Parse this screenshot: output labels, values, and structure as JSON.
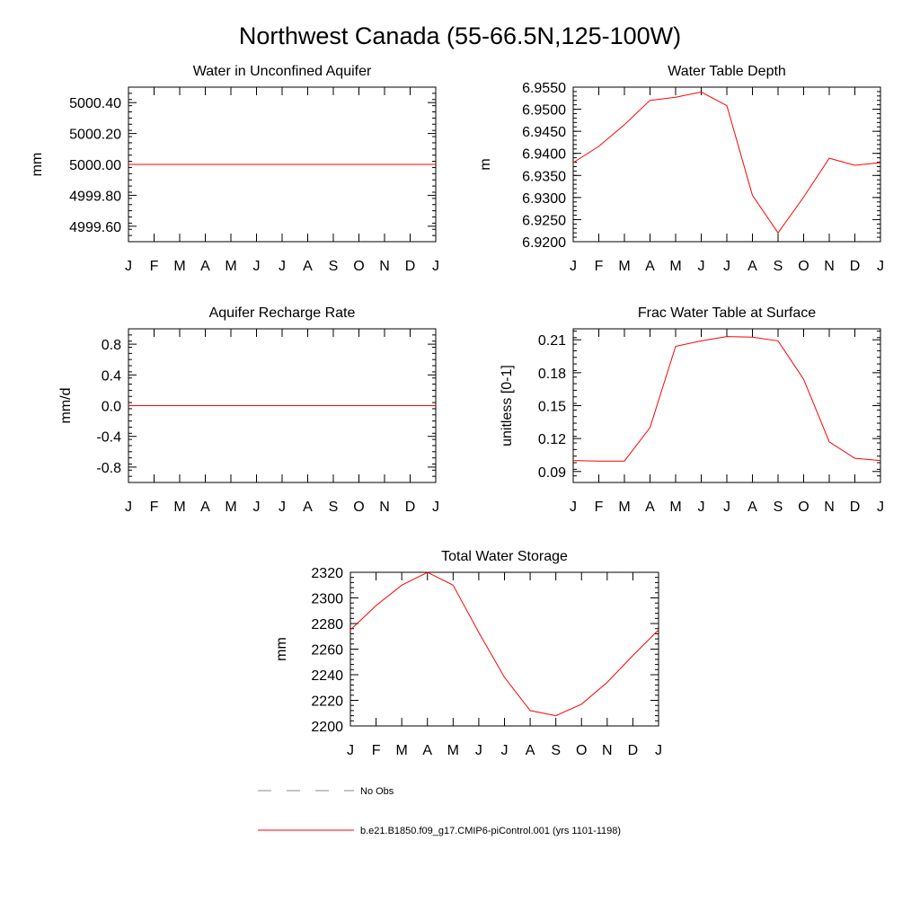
{
  "title": "Northwest Canada (55-66.5N,125-100W)",
  "chart_data": [
    {
      "type": "line",
      "title": "Water in Unconfined Aquifer",
      "ylabel": "mm",
      "x": [
        "J",
        "F",
        "M",
        "A",
        "M",
        "J",
        "J",
        "A",
        "S",
        "O",
        "N",
        "D",
        "J"
      ],
      "ylim": [
        4999.5,
        5000.5
      ],
      "yticks": [
        4999.6,
        4999.8,
        5000.0,
        5000.2,
        5000.4
      ],
      "ytick_labels": [
        "4999.60",
        "4999.80",
        "5000.00",
        "5000.20",
        "5000.40"
      ],
      "series": [
        {
          "color": "#ff0000",
          "values": [
            5000.0,
            5000.0,
            5000.0,
            5000.0,
            5000.0,
            5000.0,
            5000.0,
            5000.0,
            5000.0,
            5000.0,
            5000.0,
            5000.0,
            5000.0
          ]
        }
      ]
    },
    {
      "type": "line",
      "title": "Water Table Depth",
      "ylabel": "m",
      "x": [
        "J",
        "F",
        "M",
        "A",
        "M",
        "J",
        "J",
        "A",
        "S",
        "O",
        "N",
        "D",
        "J"
      ],
      "ylim": [
        6.92,
        6.955
      ],
      "yticks": [
        6.92,
        6.925,
        6.93,
        6.935,
        6.94,
        6.945,
        6.95,
        6.955
      ],
      "ytick_labels": [
        "6.9200",
        "6.9250",
        "6.9300",
        "6.9350",
        "6.9400",
        "6.9450",
        "6.9500",
        "6.9550"
      ],
      "series": [
        {
          "color": "#ff0000",
          "values": [
            6.9379,
            6.9416,
            6.9465,
            6.952,
            6.9527,
            6.9539,
            6.9508,
            6.9305,
            6.922,
            6.9301,
            6.9389,
            6.9373,
            6.9379
          ]
        }
      ]
    },
    {
      "type": "line",
      "title": "Aquifer Recharge Rate",
      "ylabel": "mm/d",
      "x": [
        "J",
        "F",
        "M",
        "A",
        "M",
        "J",
        "J",
        "A",
        "S",
        "O",
        "N",
        "D",
        "J"
      ],
      "ylim": [
        -1.0,
        1.0
      ],
      "yticks": [
        -0.8,
        -0.4,
        0.0,
        0.4,
        0.8
      ],
      "ytick_labels": [
        "-0.8",
        "-0.4",
        "0.0",
        "0.4",
        "0.8"
      ],
      "series": [
        {
          "color": "#ff0000",
          "values": [
            0,
            0,
            0,
            0,
            0,
            0,
            0,
            0,
            0,
            0,
            0,
            0,
            0
          ]
        }
      ]
    },
    {
      "type": "line",
      "title": "Frac Water Table at Surface",
      "ylabel": "unitless [0-1]",
      "x": [
        "J",
        "F",
        "M",
        "A",
        "M",
        "J",
        "J",
        "A",
        "S",
        "O",
        "N",
        "D",
        "J"
      ],
      "ylim": [
        0.08,
        0.22
      ],
      "yticks": [
        0.09,
        0.12,
        0.15,
        0.18,
        0.21
      ],
      "ytick_labels": [
        "0.09",
        "0.12",
        "0.15",
        "0.18",
        "0.21"
      ],
      "series": [
        {
          "color": "#ff0000",
          "values": [
            0.1,
            0.0995,
            0.0995,
            0.13,
            0.204,
            0.209,
            0.213,
            0.2125,
            0.209,
            0.174,
            0.117,
            0.102,
            0.1
          ]
        }
      ]
    },
    {
      "type": "line",
      "title": "Total Water Storage",
      "ylabel": "mm",
      "x": [
        "J",
        "F",
        "M",
        "A",
        "M",
        "J",
        "J",
        "A",
        "S",
        "O",
        "N",
        "D",
        "J"
      ],
      "ylim": [
        2200,
        2320
      ],
      "yticks": [
        2200,
        2220,
        2240,
        2260,
        2280,
        2300,
        2320
      ],
      "ytick_labels": [
        "2200",
        "2220",
        "2240",
        "2260",
        "2280",
        "2300",
        "2320"
      ],
      "series": [
        {
          "color": "#ff0000",
          "values": [
            2275,
            2294,
            2310,
            2320,
            2310,
            2273,
            2238,
            2212,
            2208,
            2217,
            2234,
            2255,
            2275
          ]
        }
      ]
    }
  ],
  "legend": {
    "items": [
      {
        "label": "No Obs",
        "color": "#888888",
        "style": "dashed"
      },
      {
        "label": "b.e21.B1850.f09_g17.CMIP6-piControl.001 (yrs 1101-1198)",
        "color": "#ff0000",
        "style": "solid"
      }
    ]
  }
}
